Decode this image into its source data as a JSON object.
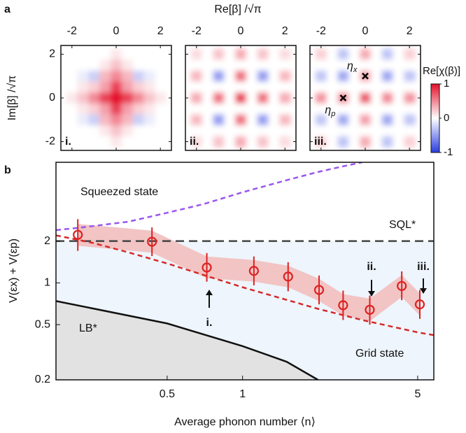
{
  "chart_data": [
    {
      "type": "heatmap",
      "panel_label": "a",
      "xlabel": "Re[β]  /√π",
      "ylabel": "Im[β] /√π",
      "xlim": [
        -2.5,
        2.5
      ],
      "ylim": [
        -2.4,
        2.4
      ],
      "xticks": [
        -2,
        0,
        2
      ],
      "yticks": [
        -2,
        0,
        2
      ],
      "x": [
        -2,
        -1.5,
        -1,
        -0.5,
        0,
        0.5,
        1,
        1.5,
        2
      ],
      "y": [
        2,
        1.5,
        1,
        0.5,
        0,
        -0.5,
        -1,
        -1.5,
        -2
      ],
      "maps": [
        {
          "label": "i.",
          "z": [
            [
              0,
              0,
              0,
              0,
              0.1,
              0,
              0,
              0,
              0
            ],
            [
              0,
              0,
              0,
              0.1,
              0.25,
              0.1,
              0,
              0,
              0
            ],
            [
              0,
              -0.1,
              -0.25,
              0.3,
              0.5,
              0.3,
              -0.25,
              -0.1,
              0
            ],
            [
              0,
              0.1,
              0.2,
              0.4,
              0.8,
              0.4,
              0.2,
              0.1,
              0
            ],
            [
              0.1,
              0.25,
              0.5,
              0.8,
              1,
              0.8,
              0.5,
              0.25,
              0.1
            ],
            [
              0,
              0.1,
              0.2,
              0.4,
              0.8,
              0.4,
              0.2,
              0.1,
              0
            ],
            [
              0,
              -0.1,
              -0.25,
              0.3,
              0.5,
              0.3,
              -0.25,
              -0.1,
              0
            ],
            [
              0,
              0,
              0,
              0.1,
              0.25,
              0.1,
              0,
              0,
              0
            ],
            [
              0,
              0,
              0,
              0,
              0.1,
              0,
              0,
              0,
              0
            ]
          ]
        },
        {
          "label": "ii.",
          "z": [
            [
              0.15,
              0,
              0.25,
              0,
              0.35,
              0,
              0.25,
              0,
              0.15
            ],
            [
              0,
              0,
              0,
              0,
              0,
              0,
              0,
              0,
              0
            ],
            [
              0.3,
              0,
              -0.5,
              0,
              0.6,
              0,
              -0.5,
              0,
              0.3
            ],
            [
              0,
              0,
              0,
              0,
              0,
              0,
              0,
              0,
              0
            ],
            [
              0.35,
              0,
              0.6,
              0,
              0.8,
              0,
              0.6,
              0,
              0.35
            ],
            [
              0,
              0,
              0,
              0,
              0,
              0,
              0,
              0,
              0
            ],
            [
              0.3,
              0,
              -0.5,
              0,
              0.6,
              0,
              -0.5,
              0,
              0.3
            ],
            [
              0,
              0,
              0,
              0,
              0,
              0,
              0,
              0,
              0
            ],
            [
              0.15,
              0,
              0.25,
              0,
              0.35,
              0,
              0.25,
              0,
              0.15
            ]
          ]
        },
        {
          "label": "iii.",
          "z": [
            [
              0.2,
              0,
              -0.3,
              0,
              0.35,
              0,
              -0.3,
              0,
              0.2
            ],
            [
              0,
              0,
              0,
              0,
              0,
              0,
              0,
              0,
              0
            ],
            [
              -0.3,
              0,
              -0.45,
              0,
              0.4,
              0,
              -0.45,
              0,
              -0.3
            ],
            [
              0,
              0,
              0,
              0,
              0,
              0,
              0,
              0,
              0
            ],
            [
              0.45,
              0,
              0.5,
              0,
              0.7,
              0,
              0.5,
              0,
              0.45
            ],
            [
              0,
              0,
              0,
              0,
              0,
              0,
              0,
              0,
              0
            ],
            [
              -0.3,
              0,
              -0.45,
              0,
              0.4,
              0,
              -0.45,
              0,
              -0.3
            ],
            [
              0,
              0,
              0,
              0,
              0,
              0,
              0,
              0,
              0
            ],
            [
              0.2,
              0,
              -0.3,
              0,
              0.35,
              0,
              -0.3,
              0,
              0.2
            ]
          ],
          "markers": [
            {
              "text": {
                "base": "η",
                "sub": "x"
              },
              "x": 0,
              "y": 1
            },
            {
              "text": {
                "base": "η",
                "sub": "p"
              },
              "x": -1,
              "y": 0
            }
          ]
        }
      ],
      "colorbar": {
        "label": "Re[χ(β)]",
        "lim": [
          -1,
          1
        ],
        "ticks": [
          1,
          0,
          -1
        ],
        "colors": [
          "#2a3de0",
          "#ffffff",
          "#e4102a"
        ]
      }
    },
    {
      "type": "line",
      "panel_label": "b",
      "xlabel": "Average phonon number ⟨n⟩",
      "ylabel": "V(εx) + V(εp)",
      "log_x": true,
      "log_y": true,
      "xlim": [
        0.18,
        5.8
      ],
      "ylim": [
        0.2,
        7.4
      ],
      "xticks": [
        0.5,
        1,
        5
      ],
      "yticks": [
        0.2,
        0.5,
        1,
        2
      ],
      "points": {
        "color": "#dd2222",
        "band_color": "#f2c4c4",
        "x": [
          0.22,
          0.435,
          0.72,
          1.11,
          1.52,
          2.02,
          2.52,
          3.22,
          4.32,
          5.1
        ],
        "values": [
          2.22,
          1.98,
          1.29,
          1.22,
          1.11,
          0.89,
          0.69,
          0.64,
          0.95,
          0.7
        ],
        "yerr_low": [
          1.7,
          1.56,
          1.02,
          0.96,
          0.87,
          0.7,
          0.54,
          0.5,
          0.75,
          0.55
        ],
        "yerr_high": [
          2.88,
          2.51,
          1.64,
          1.55,
          1.41,
          1.13,
          0.88,
          0.81,
          1.21,
          0.89
        ],
        "band_low": [
          1.85,
          1.65,
          1.08,
          1.02,
          0.93,
          0.74,
          0.58,
          0.53,
          0.79,
          0.58
        ],
        "band_high": [
          2.66,
          2.38,
          1.55,
          1.46,
          1.33,
          1.07,
          0.83,
          0.77,
          1.14,
          0.84
        ]
      },
      "series": [
        {
          "name": "Squeezed state",
          "color": "#9955ee",
          "dash": true,
          "x": [
            0.18,
            0.22,
            0.35,
            0.5,
            0.7,
            1,
            1.5,
            2,
            2.5,
            3
          ],
          "values": [
            2.4,
            2.49,
            2.76,
            3.2,
            3.7,
            4.5,
            5.5,
            6.3,
            6.9,
            7.4
          ]
        },
        {
          "name": "SQL*",
          "color": "#444444",
          "dash": true,
          "x": [
            0.18,
            5.8
          ],
          "values": [
            2,
            2
          ]
        },
        {
          "name": "Grid state",
          "color": "#d42a2a",
          "dash": true,
          "x": [
            0.18,
            0.25,
            0.35,
            0.5,
            1,
            2,
            3,
            5,
            5.8
          ],
          "values": [
            2.2,
            1.95,
            1.66,
            1.38,
            0.93,
            0.65,
            0.54,
            0.44,
            0.42
          ]
        },
        {
          "name": "LB*",
          "color": "#111111",
          "dash": false,
          "x": [
            0.18,
            0.5,
            1,
            1.5,
            2
          ],
          "values": [
            0.74,
            0.51,
            0.35,
            0.27,
            0.2
          ]
        }
      ],
      "arrow_labels": [
        "i.",
        "ii.",
        "iii."
      ]
    }
  ]
}
